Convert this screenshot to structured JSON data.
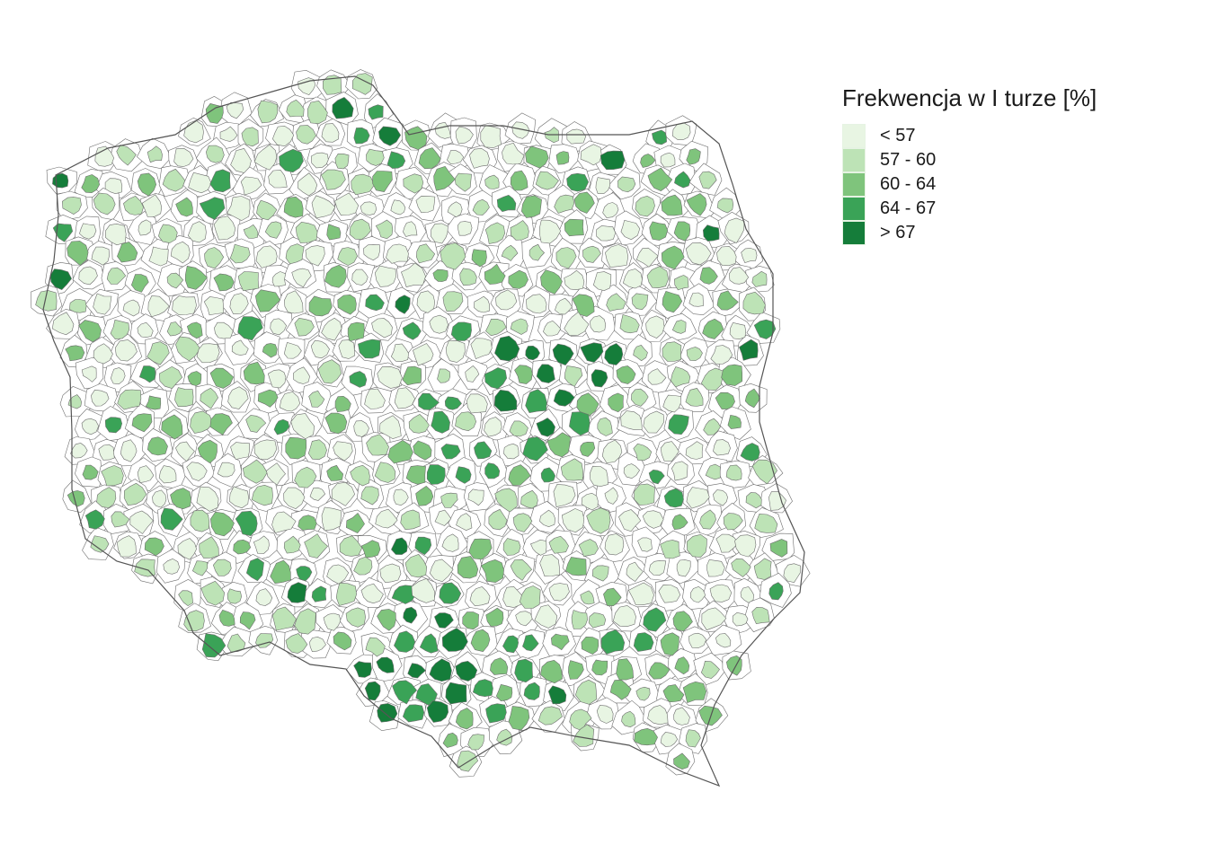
{
  "map": {
    "title": "Frekwencja w I turze [%]",
    "type": "choropleth",
    "region": "Poland",
    "border_color": "#595959",
    "background_fill": "#ffffff",
    "legend_position": "right",
    "classes": [
      {
        "label": "< 57",
        "color": "#e8f5e3"
      },
      {
        "label": "57 - 60",
        "color": "#bde3b6"
      },
      {
        "label": "60 - 64",
        "color": "#7fc47c"
      },
      {
        "label": "64 - 67",
        "color": "#3aa357"
      },
      {
        "label": "> 67",
        "color": "#157d3a"
      }
    ]
  }
}
